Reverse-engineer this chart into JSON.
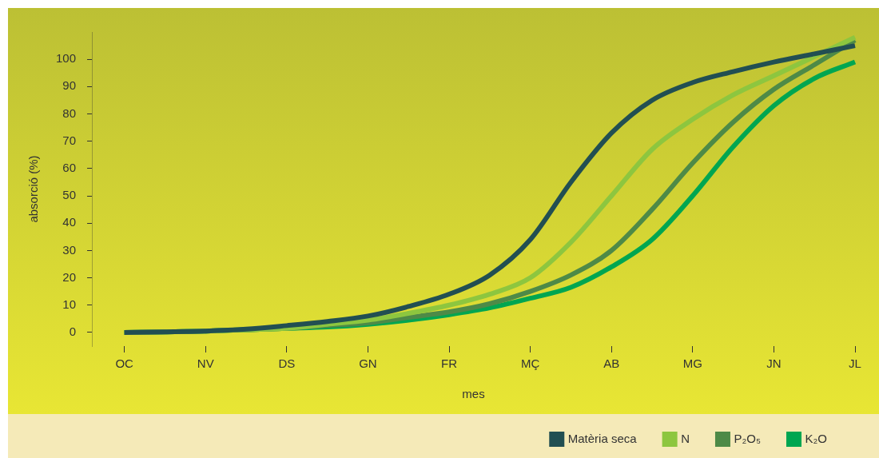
{
  "chart_data": {
    "type": "line",
    "xlabel": "mes",
    "ylabel": "absorció (%)",
    "categories": [
      "OC",
      null,
      "NV",
      null,
      "DS",
      null,
      "GN",
      null,
      "FR",
      null,
      "MÇ",
      null,
      "AB",
      null,
      "MG",
      null,
      "JN",
      null,
      "JL"
    ],
    "ylim": [
      -5,
      110
    ],
    "yticks": [
      0,
      10,
      20,
      30,
      40,
      50,
      60,
      70,
      80,
      90,
      100
    ],
    "series": [
      {
        "name": "Matèria seca",
        "color": "#224f52",
        "values": [
          0,
          0.2,
          0.5,
          1.2,
          2.5,
          4,
          6,
          9.5,
          14,
          21,
          34,
          55,
          73,
          85,
          91.5,
          95.5,
          99,
          102,
          105
        ]
      },
      {
        "name": "N",
        "color": "#8dc63f",
        "values": [
          0,
          0.2,
          0.5,
          1,
          1.5,
          3,
          4.5,
          7,
          10,
          14,
          20,
          33,
          50,
          67,
          78,
          87,
          94,
          101,
          108
        ]
      },
      {
        "name": "P₂O₅",
        "color": "#4e8a47",
        "values": [
          0,
          0.2,
          0.5,
          1,
          1.5,
          2.5,
          3.5,
          5.5,
          7.5,
          10.5,
          15,
          21,
          30,
          45,
          62,
          77,
          89,
          98,
          107
        ]
      },
      {
        "name": "K₂O",
        "color": "#00a651",
        "values": [
          0,
          0.2,
          0.5,
          1,
          1.5,
          2,
          3,
          4.5,
          6.5,
          9,
          12.5,
          16.5,
          24,
          34,
          50,
          68,
          83,
          93,
          99
        ]
      }
    ],
    "grid": false,
    "legend": "bottom right",
    "marker": "none",
    "line_style": "solid"
  }
}
